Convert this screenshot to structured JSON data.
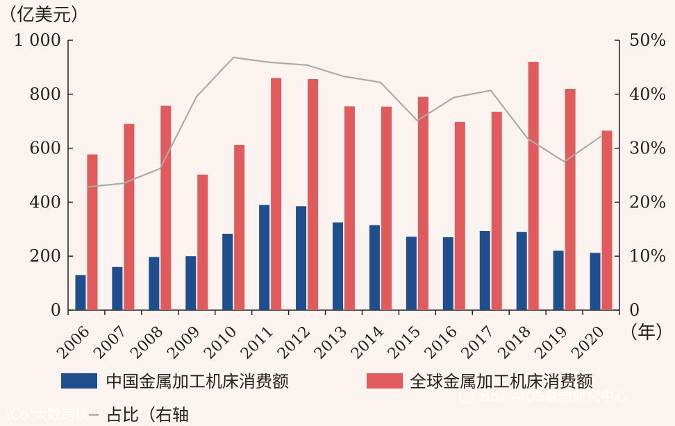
{
  "chart_data": {
    "type": "bar",
    "title": "",
    "categories": [
      "2006",
      "2007",
      "2008",
      "2009",
      "2010",
      "2011",
      "2012",
      "2013",
      "2014",
      "2015",
      "2016",
      "2017",
      "2018",
      "2019",
      "2020"
    ],
    "series": [
      {
        "name": "中国金属加工机床消费额",
        "axis": "left",
        "kind": "bar",
        "color": "#1f4e8c",
        "values": [
          130,
          160,
          197,
          200,
          283,
          390,
          385,
          325,
          315,
          272,
          270,
          293,
          290,
          220,
          212
        ]
      },
      {
        "name": "全球金属加工机床消费额",
        "axis": "left",
        "kind": "bar",
        "color": "#e05b5b",
        "values": [
          577,
          690,
          757,
          502,
          612,
          860,
          856,
          755,
          754,
          790,
          697,
          735,
          920,
          820,
          665
        ]
      },
      {
        "name": "占比（右轴",
        "axis": "right",
        "kind": "line",
        "color": "#aaaaaa",
        "values": [
          22.8,
          23.5,
          26.2,
          39.6,
          46.8,
          45.9,
          45.4,
          43.3,
          42.2,
          35.1,
          39.4,
          40.7,
          31.8,
          27.5,
          32.2
        ]
      }
    ],
    "left_axis": {
      "unit_label": "（亿美元）",
      "ylim": [
        0,
        1000
      ],
      "ticks": [
        "0",
        "200",
        "400",
        "600",
        "800",
        "1 000"
      ]
    },
    "right_axis": {
      "ylim": [
        0,
        50
      ],
      "ticks": [
        "0",
        "10%",
        "20%",
        "30%",
        "40%",
        "50%"
      ]
    },
    "x_unit_label": "（年）"
  },
  "watermarks": {
    "left": "大数跨境",
    "right": "BoT AIOS联盟研究中心"
  }
}
